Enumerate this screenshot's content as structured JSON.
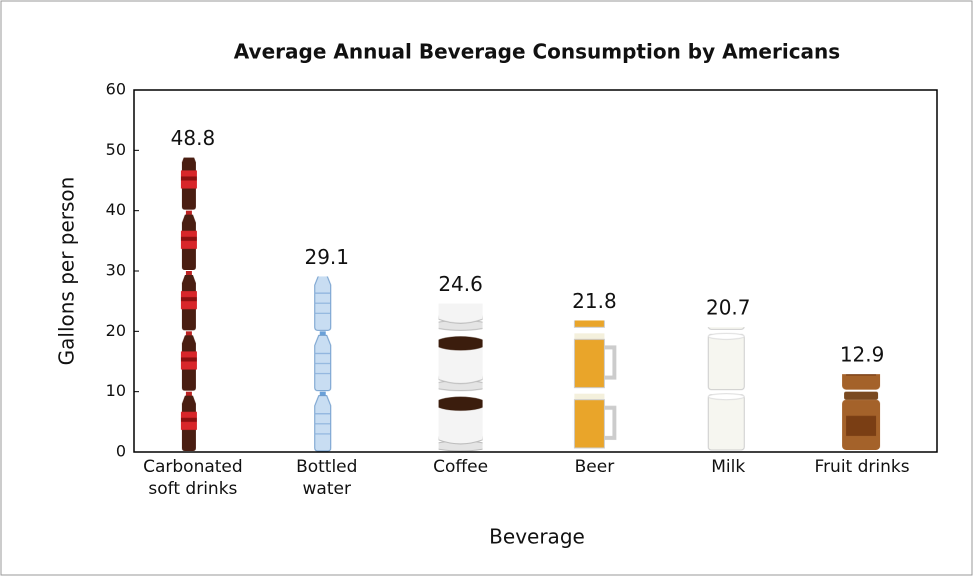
{
  "chart_data": {
    "type": "bar",
    "title": "Average Annual Beverage Consumption by Americans",
    "x_label": "Beverage",
    "y_label": "Gallons per person",
    "categories": [
      "Carbonated\nsoft drinks",
      "Bottled\nwater",
      "Coffee",
      "Beer",
      "Milk",
      "Fruit drinks"
    ],
    "values": [
      48.8,
      29.1,
      24.6,
      21.8,
      20.7,
      12.9
    ],
    "value_labels": [
      "48.8",
      "29.1",
      "24.6",
      "21.8",
      "20.7",
      "12.9"
    ],
    "ylim": [
      0,
      60
    ],
    "yticks": [
      0,
      10,
      20,
      30,
      40,
      50,
      60
    ]
  }
}
